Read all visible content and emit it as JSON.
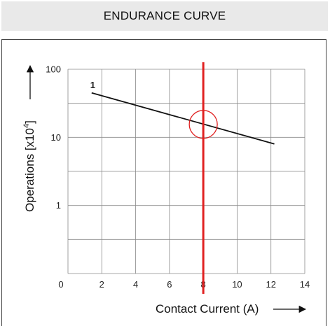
{
  "header": {
    "title": "ENDURANCE CURVE"
  },
  "chart_data": {
    "type": "line",
    "title": "ENDURANCE CURVE",
    "xlabel": "Contact Current (A)",
    "ylabel": "Operations [x10",
    "ylabel_exponent": "4",
    "ylabel_close": "]",
    "xlim": [
      0,
      14
    ],
    "ylim": [
      0.1,
      100
    ],
    "y_scale": "log",
    "grid": true,
    "x_ticks": [
      0,
      2,
      4,
      6,
      8,
      10,
      12,
      14
    ],
    "x_tick_labels": [
      "0",
      "2",
      "4",
      "6",
      "8",
      "10",
      "12",
      "14"
    ],
    "y_ticks": [
      1,
      10,
      100
    ],
    "y_tick_labels": [
      "1",
      "10",
      "100"
    ],
    "series": [
      {
        "name": "1",
        "x": [
          1.4,
          12.2
        ],
        "y": [
          45,
          8
        ]
      }
    ],
    "annotations": [
      {
        "type": "vertical-line",
        "x": 8,
        "color": "#e02020"
      },
      {
        "type": "circle-marker",
        "x": 8,
        "y": 15.5,
        "color": "#e02020"
      }
    ],
    "colors": {
      "curve": "#111111",
      "highlight": "#e02020",
      "grid": "#8a8a8a"
    }
  }
}
